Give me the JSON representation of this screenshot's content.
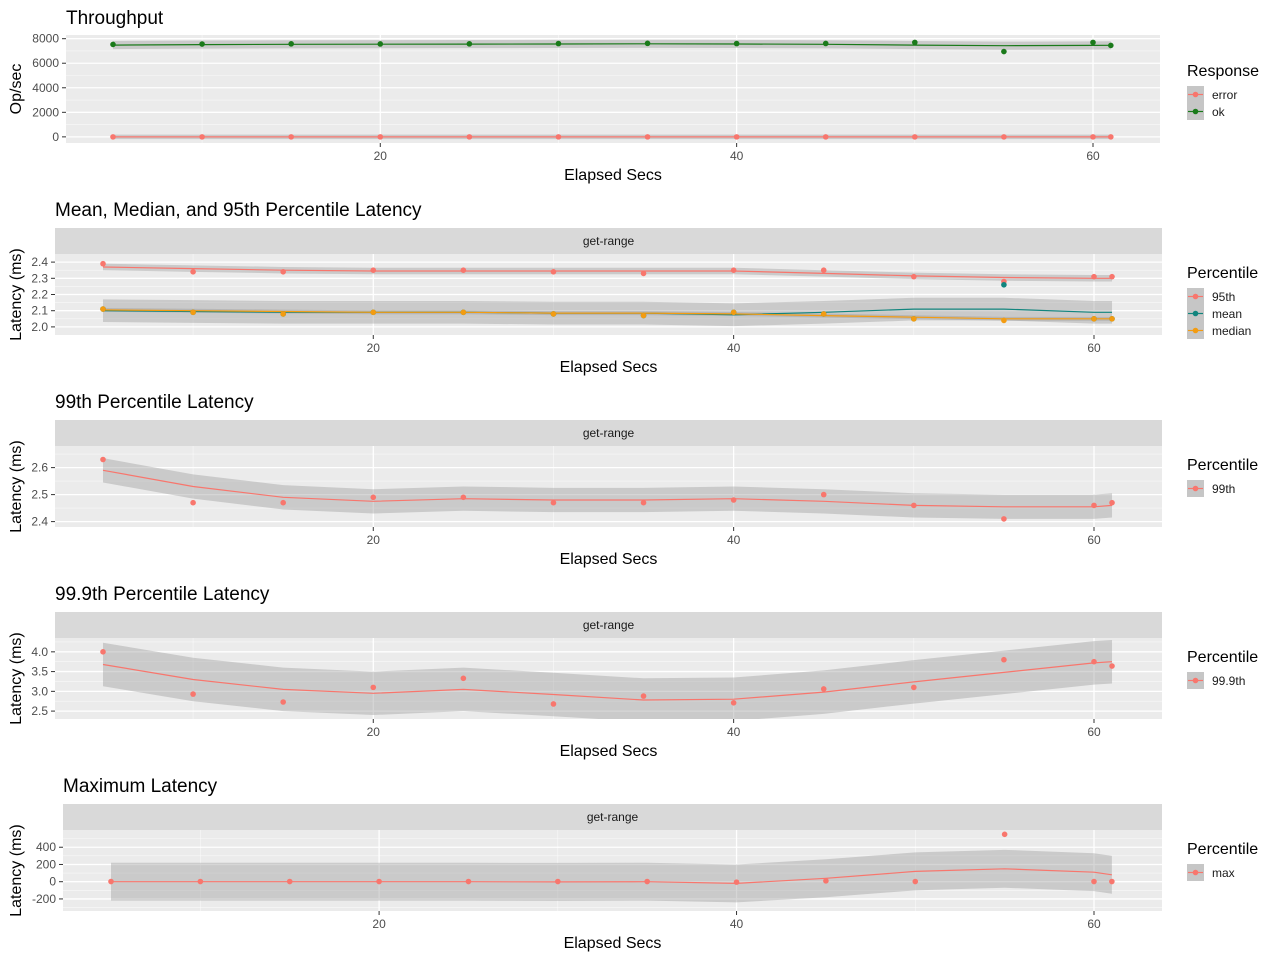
{
  "colors": {
    "red": "#F8766D",
    "green_ok": "#1A7A1A",
    "teal": "#12857E",
    "orange": "#F39C12",
    "panel": "#EBEBEB",
    "strip": "#D9D9D9",
    "band": "#BDBDBD",
    "grid": "#FFFFFF"
  },
  "chart_data": [
    {
      "type": "line",
      "title": "Throughput",
      "xlabel": "Elapsed Secs",
      "ylabel": "Op/sec",
      "strip": "",
      "ylim": [
        -500,
        8300
      ],
      "yticks": [
        0,
        2000,
        4000,
        6000,
        8000
      ],
      "ytick_labels": [
        "0",
        "2000",
        "4000",
        "6000",
        "8000"
      ],
      "legend_title": "Response",
      "series": [
        {
          "name": "error",
          "color": "#F8766D",
          "x": [
            5,
            10,
            15,
            20,
            25,
            30,
            35,
            40,
            45,
            50,
            55,
            60,
            61
          ],
          "y": [
            0,
            0,
            0,
            0,
            0,
            0,
            0,
            0,
            0,
            0,
            0,
            0,
            0
          ],
          "smooth": [
            0,
            0,
            0,
            0,
            0,
            0,
            0,
            0,
            0,
            0,
            0,
            0,
            0
          ],
          "band": 180
        },
        {
          "name": "ok",
          "color": "#1A7A1A",
          "x": [
            5,
            10,
            15,
            20,
            25,
            30,
            35,
            40,
            45,
            50,
            55,
            60,
            61
          ],
          "y": [
            7530,
            7560,
            7580,
            7570,
            7580,
            7600,
            7620,
            7600,
            7610,
            7700,
            6950,
            7700,
            7450
          ],
          "smooth": [
            7480,
            7520,
            7540,
            7550,
            7560,
            7570,
            7580,
            7570,
            7540,
            7480,
            7430,
            7450,
            7460
          ],
          "band": 330
        }
      ]
    },
    {
      "type": "line",
      "title": "Mean, Median, and 95th Percentile Latency",
      "xlabel": "Elapsed Secs",
      "ylabel": "Latency (ms)",
      "strip": "get-range",
      "ylim": [
        1.95,
        2.45
      ],
      "yticks": [
        2.0,
        2.1,
        2.2,
        2.3,
        2.4
      ],
      "ytick_labels": [
        "2.0",
        "2.1",
        "2.2",
        "2.3",
        "2.4"
      ],
      "legend_title": "Percentile",
      "series": [
        {
          "name": "95th",
          "color": "#F8766D",
          "x": [
            5,
            10,
            15,
            20,
            25,
            30,
            35,
            40,
            45,
            50,
            55,
            60,
            61
          ],
          "y": [
            2.39,
            2.34,
            2.34,
            2.35,
            2.35,
            2.34,
            2.33,
            2.35,
            2.35,
            2.31,
            2.28,
            2.31,
            2.31
          ],
          "smooth": [
            2.37,
            2.36,
            2.35,
            2.345,
            2.345,
            2.345,
            2.345,
            2.345,
            2.33,
            2.315,
            2.305,
            2.3,
            2.3
          ],
          "band": 0.02
        },
        {
          "name": "mean",
          "color": "#12857E",
          "x": [
            5,
            10,
            15,
            20,
            25,
            30,
            35,
            40,
            45,
            50,
            55,
            60,
            61
          ],
          "y": [
            2.11,
            2.09,
            2.08,
            2.09,
            2.09,
            2.08,
            2.07,
            2.09,
            2.08,
            2.05,
            2.26,
            2.05,
            2.05
          ],
          "smooth": [
            2.1,
            2.095,
            2.09,
            2.09,
            2.09,
            2.085,
            2.085,
            2.075,
            2.09,
            2.11,
            2.11,
            2.09,
            2.09
          ],
          "band": 0.07
        },
        {
          "name": "median",
          "color": "#F39C12",
          "x": [
            5,
            10,
            15,
            20,
            25,
            30,
            35,
            40,
            45,
            50,
            55,
            60,
            61
          ],
          "y": [
            2.11,
            2.09,
            2.08,
            2.09,
            2.09,
            2.08,
            2.07,
            2.09,
            2.08,
            2.05,
            2.04,
            2.05,
            2.05
          ],
          "smooth": [
            2.105,
            2.1,
            2.095,
            2.09,
            2.09,
            2.085,
            2.085,
            2.08,
            2.07,
            2.06,
            2.05,
            2.05,
            2.05
          ],
          "band": 0.012
        }
      ]
    },
    {
      "type": "line",
      "title": "99th Percentile Latency",
      "xlabel": "Elapsed Secs",
      "ylabel": "Latency (ms)",
      "strip": "get-range",
      "ylim": [
        2.38,
        2.68
      ],
      "yticks": [
        2.4,
        2.5,
        2.6
      ],
      "ytick_labels": [
        "2.4",
        "2.5",
        "2.6"
      ],
      "legend_title": "Percentile",
      "series": [
        {
          "name": "99th",
          "color": "#F8766D",
          "x": [
            5,
            10,
            15,
            20,
            25,
            30,
            35,
            40,
            45,
            50,
            55,
            60,
            61
          ],
          "y": [
            2.63,
            2.47,
            2.47,
            2.49,
            2.49,
            2.47,
            2.47,
            2.48,
            2.5,
            2.46,
            2.41,
            2.46,
            2.47
          ],
          "smooth": [
            2.59,
            2.53,
            2.49,
            2.475,
            2.485,
            2.48,
            2.48,
            2.485,
            2.475,
            2.46,
            2.455,
            2.455,
            2.46
          ],
          "band": 0.045
        }
      ]
    },
    {
      "type": "line",
      "title": "99.9th Percentile Latency",
      "xlabel": "Elapsed Secs",
      "ylabel": "Latency (ms)",
      "strip": "get-range",
      "ylim": [
        2.3,
        4.35
      ],
      "yticks": [
        2.5,
        3.0,
        3.5,
        4.0
      ],
      "ytick_labels": [
        "2.5",
        "3.0",
        "3.5",
        "4.0"
      ],
      "legend_title": "Percentile",
      "series": [
        {
          "name": "99.9th",
          "color": "#F8766D",
          "x": [
            5,
            10,
            15,
            20,
            25,
            30,
            35,
            40,
            45,
            50,
            55,
            60,
            61
          ],
          "y": [
            4.0,
            2.93,
            2.73,
            3.1,
            3.33,
            2.68,
            2.88,
            2.71,
            3.06,
            3.1,
            3.8,
            3.75,
            3.64
          ],
          "smooth": [
            3.68,
            3.3,
            3.05,
            2.95,
            3.05,
            2.92,
            2.78,
            2.8,
            2.98,
            3.24,
            3.48,
            3.72,
            3.75
          ],
          "band": 0.55
        }
      ]
    },
    {
      "type": "line",
      "title": "Maximum Latency",
      "xlabel": "Elapsed Secs",
      "ylabel": "Latency (ms)",
      "strip": "get-range",
      "ylim": [
        -340,
        600
      ],
      "yticks": [
        -200,
        0,
        200,
        400
      ],
      "ytick_labels": [
        "-200",
        "0",
        "200",
        "400"
      ],
      "legend_title": "Percentile",
      "series": [
        {
          "name": "max",
          "color": "#F8766D",
          "x": [
            5,
            10,
            15,
            20,
            25,
            30,
            35,
            40,
            45,
            50,
            55,
            60,
            61
          ],
          "y": [
            2,
            2,
            2,
            2,
            2,
            2,
            2,
            -5,
            10,
            2,
            550,
            2,
            2
          ],
          "smooth": [
            0,
            0,
            0,
            0,
            0,
            -2,
            0,
            -20,
            40,
            120,
            150,
            110,
            80
          ],
          "band": 220
        }
      ]
    }
  ]
}
